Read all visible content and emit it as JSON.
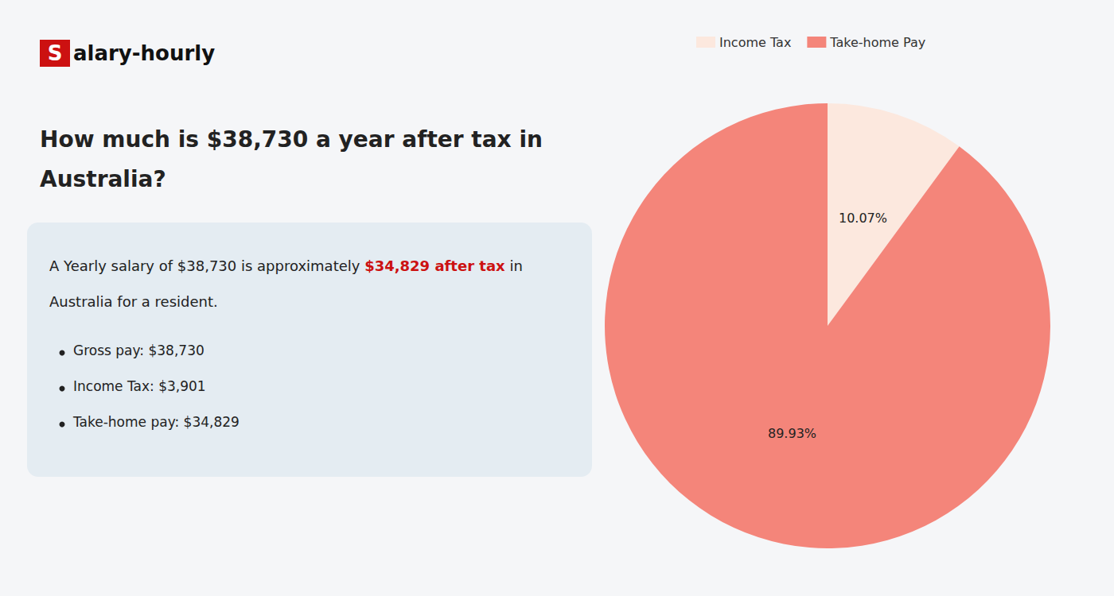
{
  "chart_data": {
    "type": "pie",
    "title": "How much is $38,730 a year after tax in\nAustralia?",
    "categories": [
      "Income Tax",
      "Take-home Pay"
    ],
    "values": [
      10.07,
      89.93
    ],
    "value_labels": [
      "10.07%",
      "89.93%"
    ],
    "colors": [
      "#fce8de",
      "#f4857a"
    ],
    "data_labels": true,
    "legend": "top",
    "annotations": [
      [
        {
          "text": "S"
        },
        {
          "text": "alary-hourly"
        }
      ],
      [
        {
          "text": "A Yearly salary of $38,730 is approximately "
        },
        {
          "text": "$34,829 after tax",
          "color": "#cc1111"
        },
        {
          "text": " in"
        }
      ],
      [
        {
          "text": "Australia for a resident."
        }
      ],
      [
        {
          "text": "Gross pay: $38,730"
        }
      ],
      [
        {
          "text": "Income Tax: $3,901"
        }
      ],
      [
        {
          "text": "Take-home pay: $34,829"
        }
      ]
    ]
  }
}
